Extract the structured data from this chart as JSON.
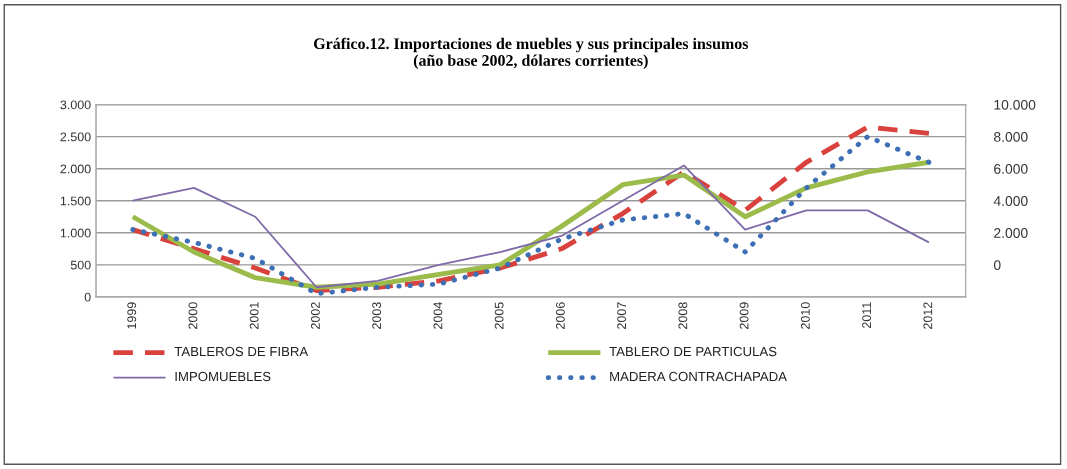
{
  "chart_data": {
    "type": "line",
    "title": "Gráfico.12. Importaciones de muebles y sus principales insumos\n(año base 2002, dólares corrientes)",
    "categories": [
      "1999",
      "2000",
      "2001",
      "2002",
      "2003",
      "2004",
      "2005",
      "2006",
      "2007",
      "2008",
      "2009",
      "2010",
      "2011",
      "2012"
    ],
    "series": [
      {
        "name": "TABLEROS DE FIBRA",
        "color": "#d9423c",
        "line_style": "dashed",
        "values": [
          1050,
          750,
          450,
          100,
          150,
          250,
          450,
          750,
          1300,
          1950,
          1350,
          2100,
          2650,
          2550
        ]
      },
      {
        "name": "TABLERO DE PARTICULAS",
        "color": "#9bbb4a",
        "line_style": "solid",
        "values": [
          1250,
          700,
          300,
          150,
          200,
          350,
          500,
          1100,
          1750,
          1900,
          1250,
          1700,
          1950,
          2100
        ]
      },
      {
        "name": "IMPOMUEBLES",
        "color": "#7f6aa8",
        "line_style": "solid",
        "values": [
          1500,
          1700,
          1250,
          150,
          250,
          500,
          700,
          950,
          1500,
          2050,
          1050,
          1350,
          1350,
          850
        ]
      },
      {
        "name": "MADERA CONTRACHAPADA",
        "color": "#3d6fb5",
        "line_style": "dotted",
        "values": [
          1050,
          850,
          600,
          50,
          150,
          200,
          450,
          900,
          1200,
          1300,
          700,
          1700,
          2500,
          2100
        ]
      }
    ],
    "ylim": [
      0,
      3000
    ],
    "yticks": [
      {
        "value": 0,
        "label": "0"
      },
      {
        "value": 500,
        "label": "500"
      },
      {
        "value": 1000,
        "label": "1.000"
      },
      {
        "value": 1500,
        "label": "1.500"
      },
      {
        "value": 2000,
        "label": "2.000"
      },
      {
        "value": 2500,
        "label": "2.500"
      },
      {
        "value": 3000,
        "label": "3.000"
      }
    ],
    "y2lim": [
      -2000,
      10000
    ],
    "y2ticks": [
      {
        "value": 0,
        "label": "0"
      },
      {
        "value": 2000,
        "label": "2.000"
      },
      {
        "value": 4000,
        "label": "4.000"
      },
      {
        "value": 6000,
        "label": "6.000"
      },
      {
        "value": 8000,
        "label": "8.000"
      },
      {
        "value": 10000,
        "label": "10.000"
      }
    ],
    "grid": "y",
    "legend": "bottom",
    "marker": "none"
  }
}
